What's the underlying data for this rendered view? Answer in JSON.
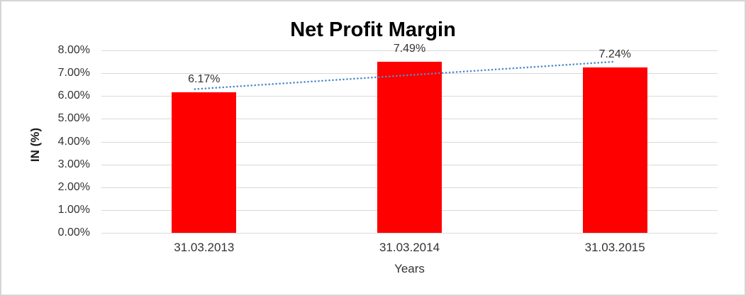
{
  "chart_data": {
    "type": "bar",
    "title": "Net Profit Margin",
    "xlabel": "Years",
    "ylabel": "IN (%)",
    "categories": [
      "31.03.2013",
      "31.03.2014",
      "31.03.2015"
    ],
    "values": [
      6.17,
      7.49,
      7.24
    ],
    "data_labels": [
      "6.17%",
      "7.49%",
      "7.24%"
    ],
    "ylim": [
      0,
      8
    ],
    "ytick_step": 1,
    "ytick_labels": [
      "0.00%",
      "1.00%",
      "2.00%",
      "3.00%",
      "4.00%",
      "5.00%",
      "6.00%",
      "7.00%",
      "8.00%"
    ],
    "grid": "horizontal",
    "legend": "none",
    "bar_color": "#ff0000",
    "gridline_color": "#d9d9d9",
    "text_color": "#333333",
    "trendline": {
      "type": "linear",
      "style": "dotted",
      "color": "#4f8bc9",
      "start_value": 6.3,
      "end_value": 7.5
    }
  }
}
